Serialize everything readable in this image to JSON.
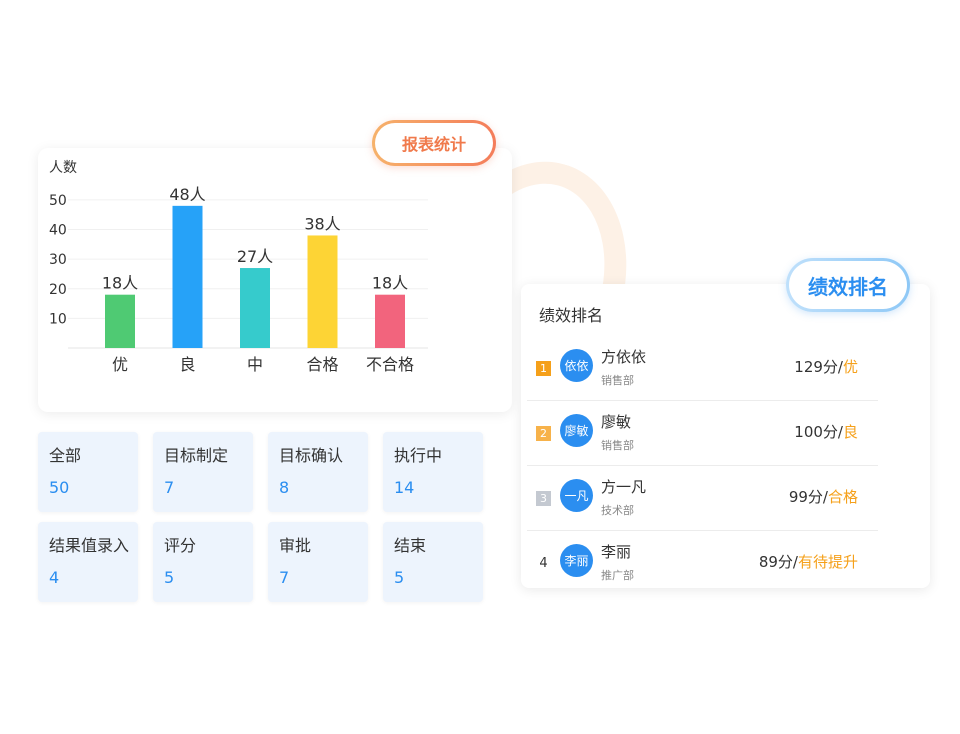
{
  "report_badge": {
    "label": "报表统计"
  },
  "chart_data": {
    "type": "bar",
    "ylabel": "人数",
    "categories": [
      "优",
      "良",
      "中",
      "合格",
      "不合格"
    ],
    "values": [
      18,
      48,
      27,
      38,
      18
    ],
    "data_labels": [
      "18人",
      "48人",
      "27人",
      "38人",
      "18人"
    ],
    "colors": [
      "#4fca73",
      "#26a2f8",
      "#36cbcc",
      "#fdd435",
      "#f2647d"
    ],
    "yticks": [
      10,
      20,
      30,
      40,
      50
    ],
    "ylim": [
      0,
      52
    ],
    "grid": true
  },
  "stats": [
    {
      "label": "全部",
      "value": "50"
    },
    {
      "label": "目标制定",
      "value": "7"
    },
    {
      "label": "目标确认",
      "value": "8"
    },
    {
      "label": "执行中",
      "value": "14"
    },
    {
      "label": "结果值录入",
      "value": "4"
    },
    {
      "label": "评分",
      "value": "5"
    },
    {
      "label": "审批",
      "value": "7"
    },
    {
      "label": "结束",
      "value": "5"
    }
  ],
  "ranking": {
    "badge": "绩效排名",
    "title": "绩效排名",
    "rows": [
      {
        "rank": "1",
        "avatar": "依依",
        "name": "方依依",
        "dept": "销售部",
        "score": "129分/",
        "grade": "优",
        "rank_color": "#f5a01a"
      },
      {
        "rank": "2",
        "avatar": "廖敏",
        "name": "廖敏",
        "dept": "销售部",
        "score": "100分/",
        "grade": "良",
        "rank_color": "#f7b24a"
      },
      {
        "rank": "3",
        "avatar": "一凡",
        "name": "方一凡",
        "dept": "技术部",
        "score": "99分/",
        "grade": "合格",
        "rank_color": "#c4c9d1"
      },
      {
        "rank": "4",
        "avatar": "李丽",
        "name": "李丽",
        "dept": "推广部",
        "score": "89分/",
        "grade": "有待提升",
        "rank_color": ""
      }
    ]
  }
}
